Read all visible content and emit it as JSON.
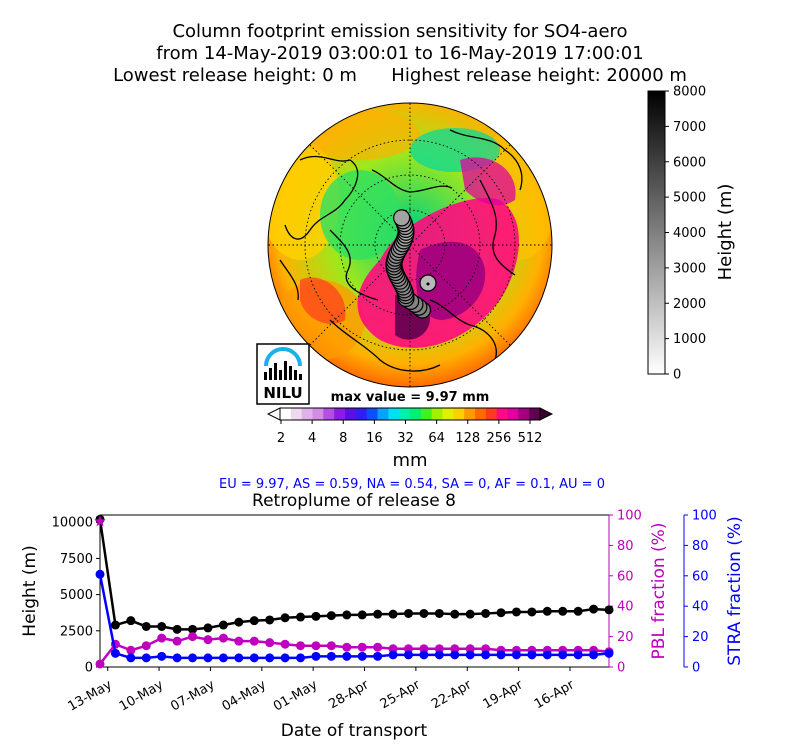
{
  "header": {
    "title_line1": "Column footprint emission sensitivity for SO4-aero",
    "title_line2": "from 14-May-2019 03:00:01 to 16-May-2019 17:00:01",
    "title_line3": "Lowest release height: 0 m      Highest release height: 20000 m"
  },
  "logo": {
    "text": "NILU"
  },
  "map": {
    "max_value_label": "max value = 9.97 mm",
    "colorbar_ticks": [
      "2",
      "4",
      "8",
      "16",
      "32",
      "64",
      "128",
      "256",
      "512"
    ],
    "colorbar_unit": "mm",
    "colorbar_colors": [
      "#ffffff",
      "#f0d8f0",
      "#e0b0e8",
      "#d28ce6",
      "#b44ee4",
      "#8c1ce0",
      "#5a10e0",
      "#3020f0",
      "#0a50ff",
      "#0aa0ff",
      "#00e0f0",
      "#00f0b0",
      "#00f070",
      "#40f020",
      "#a0f000",
      "#e0f000",
      "#ffd000",
      "#ff9a00",
      "#ff6a00",
      "#ff3a20",
      "#ff0a80",
      "#e000a0",
      "#a00080",
      "#600050"
    ]
  },
  "height_colorbar": {
    "label": "Height (m)",
    "ticks": [
      "0",
      "1000",
      "2000",
      "3000",
      "4000",
      "5000",
      "6000",
      "7000",
      "8000"
    ]
  },
  "region_summary": "EU = 9.97,  AS = 0.59,  NA = 0.54,  SA = 0,  AF = 0.1,  AU = 0",
  "chart_data": {
    "type": "line",
    "title": "Retroplume of release 8",
    "xlabel": "Date of transport",
    "x_ticks": [
      "13-May",
      "10-May",
      "07-May",
      "04-May",
      "01-May",
      "28-Apr",
      "25-Apr",
      "22-Apr",
      "19-Apr",
      "16-Apr"
    ],
    "x_days_back": [
      0,
      1,
      2,
      3,
      4,
      5,
      6,
      7,
      8,
      9,
      10,
      11,
      12,
      13,
      14,
      15,
      16,
      17,
      18,
      19,
      20,
      21,
      22,
      23,
      24,
      25,
      26,
      27,
      28,
      29,
      30,
      31,
      32,
      33
    ],
    "axes": [
      {
        "label": "Height (m)",
        "ylim": [
          0,
          10500
        ],
        "ticks": [
          "0",
          "2500",
          "5000",
          "7500",
          "10000"
        ],
        "color": "#000000"
      },
      {
        "label": "PBL fraction (%)",
        "ylim": [
          0,
          100
        ],
        "ticks": [
          "0",
          "20",
          "40",
          "60",
          "80",
          "100"
        ],
        "color": "#bf00bf"
      },
      {
        "label": "STRA fraction (%)",
        "ylim": [
          0,
          100
        ],
        "ticks": [
          "0",
          "20",
          "40",
          "60",
          "80",
          "100"
        ],
        "color": "#0000ff"
      }
    ],
    "series": [
      {
        "name": "Height (m)",
        "axis": 0,
        "color": "#000000",
        "values": [
          10200,
          2900,
          3200,
          2800,
          2800,
          2600,
          2600,
          2700,
          2900,
          3100,
          3200,
          3250,
          3400,
          3450,
          3500,
          3550,
          3600,
          3600,
          3650,
          3650,
          3700,
          3700,
          3700,
          3650,
          3650,
          3700,
          3750,
          3800,
          3800,
          3850,
          3850,
          3850,
          4000,
          3950
        ]
      },
      {
        "name": "PBL fraction (%)",
        "axis": 1,
        "color": "#bf00bf",
        "values": [
          2,
          15,
          11,
          14,
          19,
          17,
          20,
          18,
          19,
          17,
          17,
          16,
          15,
          14,
          14,
          14,
          13,
          13,
          13,
          12,
          12,
          12,
          12,
          12,
          12,
          12,
          11,
          11,
          11,
          11,
          11,
          11,
          11,
          10
        ]
      },
      {
        "name": "STRA fraction (%)",
        "axis": 2,
        "color": "#0000ff",
        "values": [
          61,
          9,
          6,
          6,
          7,
          6,
          6,
          6,
          6,
          6,
          6,
          6,
          6,
          6,
          7,
          7,
          7,
          7,
          7,
          8,
          8,
          8,
          8,
          8,
          8,
          8,
          8,
          8,
          8,
          8,
          8,
          8,
          8,
          9
        ]
      }
    ]
  }
}
